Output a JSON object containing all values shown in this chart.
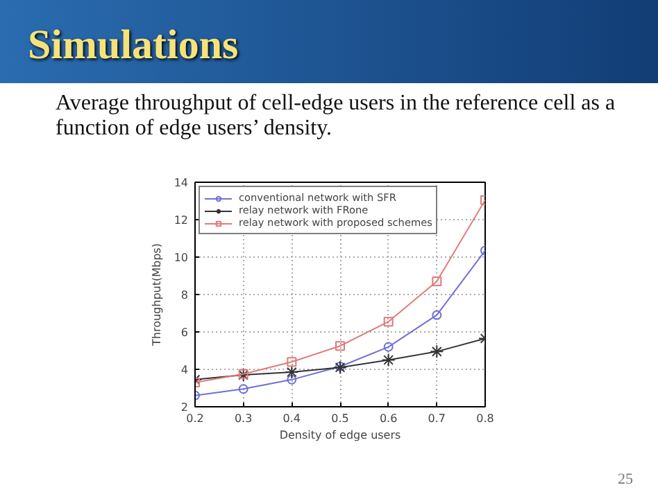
{
  "chart_data": {
    "type": "line",
    "title": "Simulations",
    "subtitle": "Average throughput of cell-edge users in the reference cell as a function of edge users’ density.",
    "xlabel": "Density of edge users",
    "ylabel": "Throughput(Mbps)",
    "x": [
      0.2,
      0.3,
      0.4,
      0.5,
      0.6,
      0.7,
      0.8
    ],
    "series": [
      {
        "name": "conventional network with SFR",
        "color": "#6f6fd8",
        "marker": "circle",
        "values": [
          2.6,
          2.95,
          3.45,
          4.15,
          5.2,
          6.9,
          10.35
        ]
      },
      {
        "name": "relay network with FRone",
        "color": "#333333",
        "marker": "cross",
        "values": [
          3.45,
          3.7,
          3.85,
          4.1,
          4.5,
          4.95,
          5.65
        ]
      },
      {
        "name": "relay network with proposed schemes",
        "color": "#e07a7a",
        "marker": "square",
        "values": [
          3.3,
          3.75,
          4.4,
          5.25,
          6.55,
          8.7,
          13.05
        ]
      }
    ],
    "xlim": [
      0.2,
      0.8
    ],
    "ylim": [
      2,
      14
    ],
    "xticks": [
      0.2,
      0.3,
      0.4,
      0.5,
      0.6,
      0.7,
      0.8
    ],
    "yticks": [
      2,
      4,
      6,
      8,
      10,
      12,
      14
    ],
    "grid": true,
    "legend": "top left",
    "line_style": "solid",
    "annotations": [
      "25"
    ]
  }
}
